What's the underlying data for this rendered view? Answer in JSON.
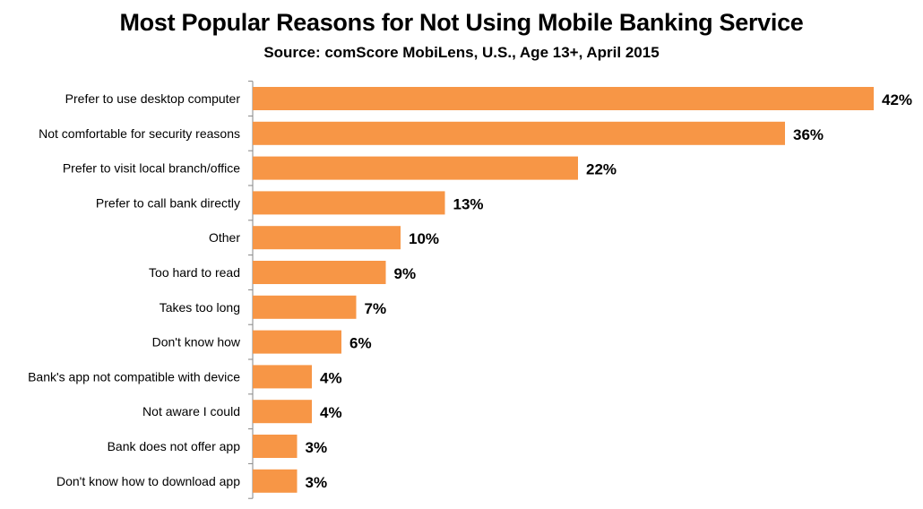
{
  "chart_data": {
    "type": "bar",
    "orientation": "horizontal",
    "title": "Most Popular Reasons for Not Using Mobile Banking Service",
    "subtitle": "Source: comScore MobiLens, U.S., Age 13+, April 2015",
    "categories": [
      "Prefer to use desktop computer",
      "Not comfortable for security reasons",
      "Prefer to visit local branch/office",
      "Prefer to call bank directly",
      "Other",
      "Too hard to read",
      "Takes too long",
      "Don't know how",
      "Bank's app not compatible with device",
      "Not aware I could",
      "Bank does not offer app",
      "Don't know how to download app"
    ],
    "values": [
      42,
      36,
      22,
      13,
      10,
      9,
      7,
      6,
      4,
      4,
      3,
      3
    ],
    "value_labels": [
      "42%",
      "36%",
      "22%",
      "13%",
      "10%",
      "9%",
      "7%",
      "6%",
      "4%",
      "4%",
      "3%",
      "3%"
    ],
    "unit": "%",
    "xlim": [
      0,
      42
    ],
    "grid": false,
    "legend": "none",
    "bar_color": "#F79646",
    "axis_color": "#868686"
  }
}
